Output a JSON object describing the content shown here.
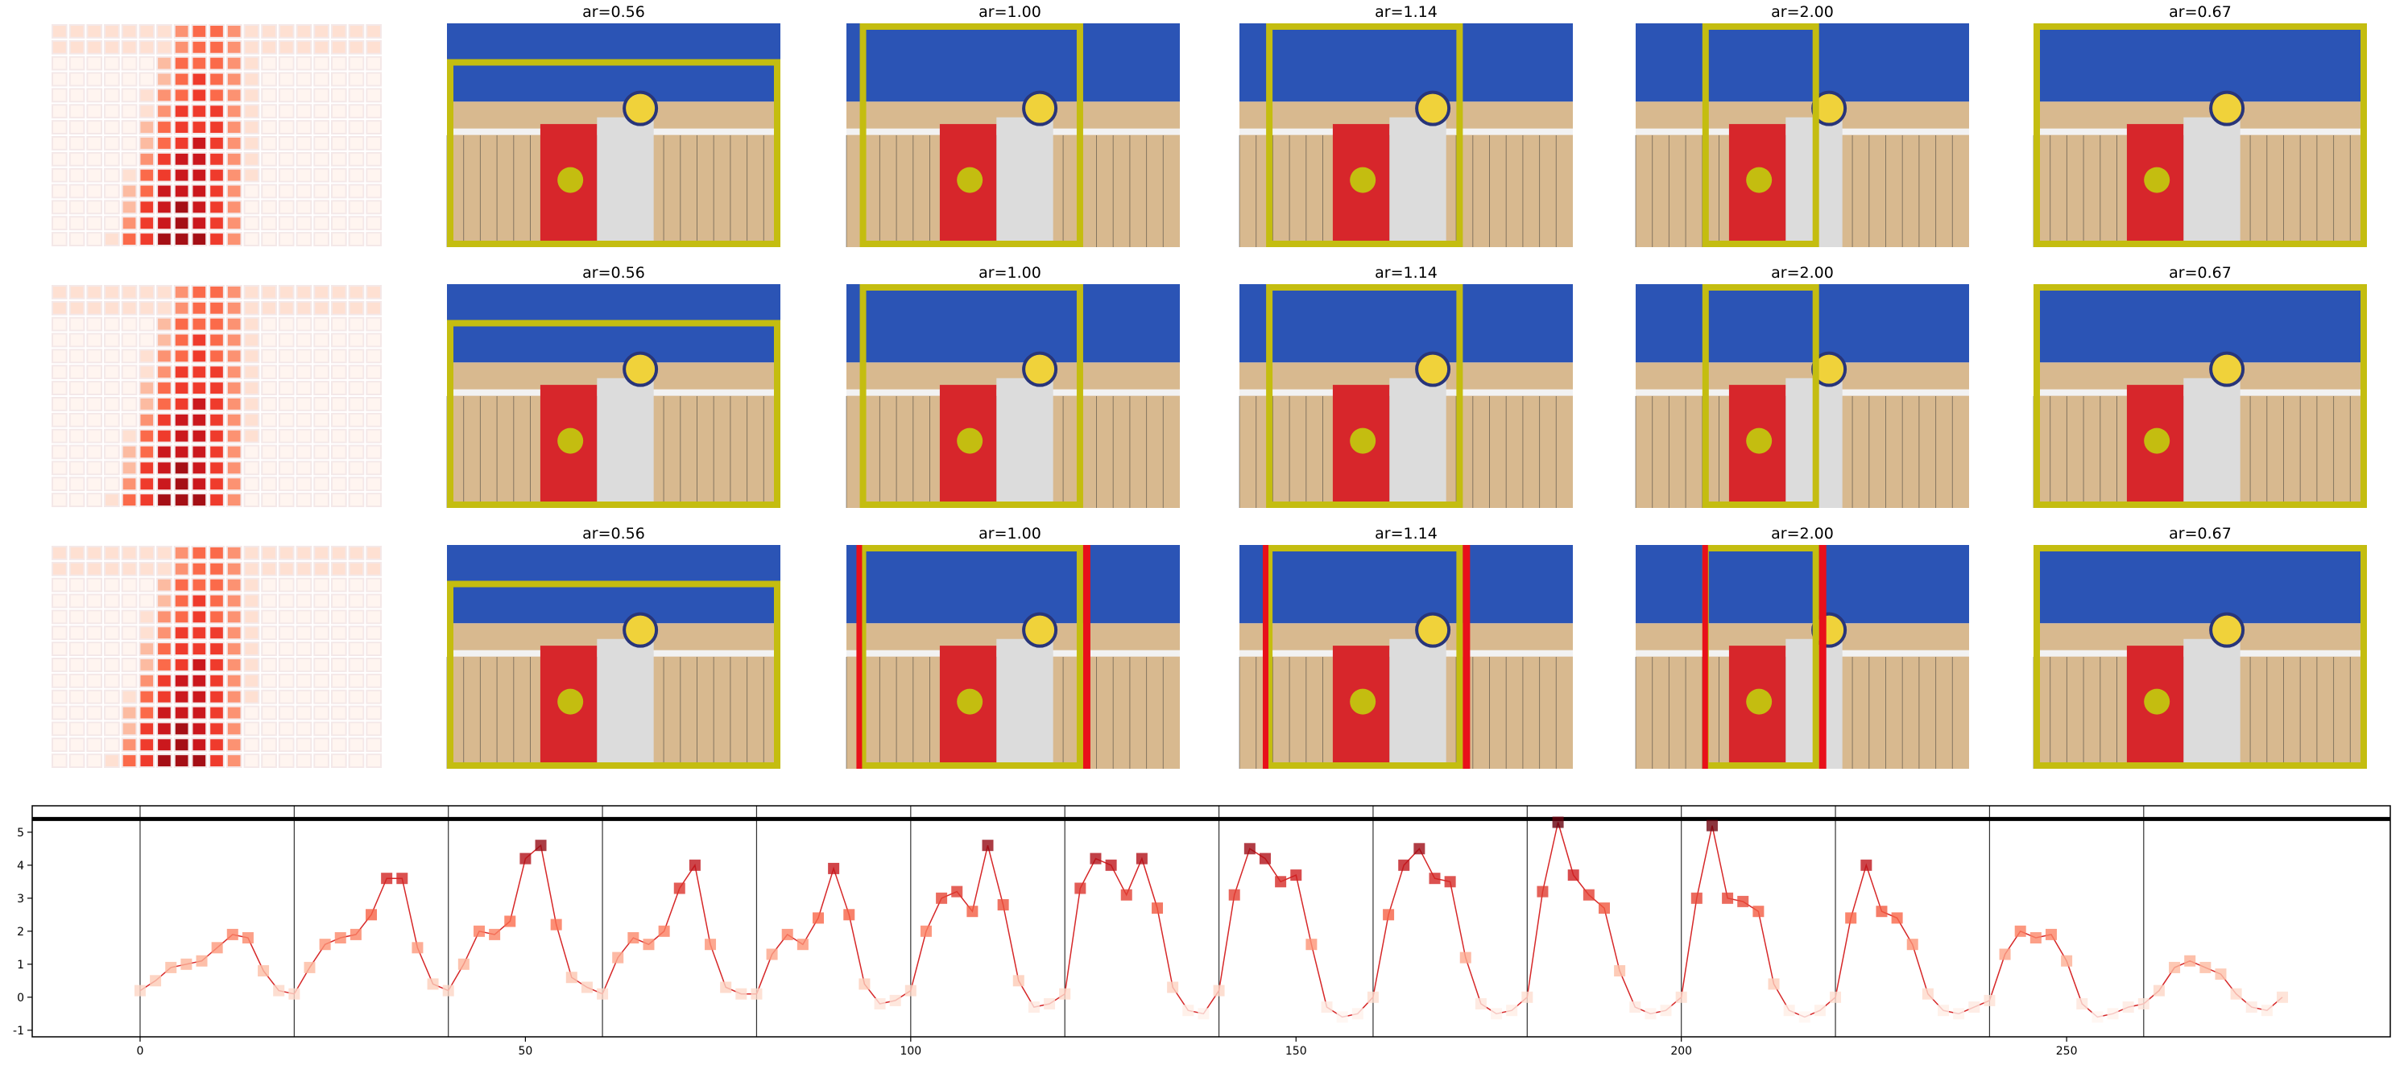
{
  "panel_titles": [
    [
      "ar=0.56",
      "ar=1.00",
      "ar=1.14",
      "ar=2.00",
      "ar=0.67"
    ],
    [
      "ar=0.56",
      "ar=1.00",
      "ar=1.14",
      "ar=2.00",
      "ar=0.67"
    ],
    [
      "ar=0.56",
      "ar=1.00",
      "ar=1.14",
      "ar=2.00",
      "ar=0.67"
    ]
  ],
  "chart_data": {
    "type": "line",
    "x": [
      0,
      2,
      4,
      6,
      8,
      10,
      12,
      14,
      16,
      18,
      20,
      22,
      24,
      26,
      28,
      30,
      32,
      34,
      36,
      38,
      40,
      42,
      44,
      46,
      48,
      50,
      52,
      54,
      56,
      58,
      60,
      62,
      64,
      66,
      68,
      70,
      72,
      74,
      76,
      78,
      80,
      82,
      84,
      86,
      88,
      90,
      92,
      94,
      96,
      98,
      100,
      102,
      104,
      106,
      108,
      110,
      112,
      114,
      116,
      118,
      120,
      122,
      124,
      126,
      128,
      130,
      132,
      134,
      136,
      138,
      140,
      142,
      144,
      146,
      148,
      150,
      152,
      154,
      156,
      158,
      160,
      162,
      164,
      166,
      168,
      170,
      172,
      174,
      176,
      178,
      180,
      182,
      184,
      186,
      188,
      190,
      192,
      194,
      196,
      198,
      200,
      202,
      204,
      206,
      208,
      210,
      212,
      214,
      216,
      218,
      220,
      222,
      224,
      226,
      228,
      230,
      232,
      234,
      236,
      238,
      240,
      242,
      244,
      246,
      248,
      250,
      252,
      254,
      256,
      258,
      260,
      262,
      264,
      266,
      268,
      270,
      272,
      274,
      276,
      278
    ],
    "values": [
      0.2,
      0.5,
      0.9,
      1.0,
      1.1,
      1.5,
      1.9,
      1.8,
      0.8,
      0.2,
      0.1,
      0.9,
      1.6,
      1.8,
      1.9,
      2.5,
      3.6,
      3.6,
      1.5,
      0.4,
      0.2,
      1.0,
      2.0,
      1.9,
      2.3,
      4.2,
      4.6,
      2.2,
      0.6,
      0.3,
      0.1,
      1.2,
      1.8,
      1.6,
      2.0,
      3.3,
      4.0,
      1.6,
      0.3,
      0.1,
      0.1,
      1.3,
      1.9,
      1.6,
      2.4,
      3.9,
      2.5,
      0.4,
      -0.2,
      -0.1,
      0.2,
      2.0,
      3.0,
      3.2,
      2.6,
      4.6,
      2.8,
      0.5,
      -0.3,
      -0.2,
      0.1,
      3.3,
      4.2,
      4.0,
      3.1,
      4.2,
      2.7,
      0.3,
      -0.4,
      -0.5,
      0.2,
      3.1,
      4.5,
      4.2,
      3.5,
      3.7,
      1.6,
      -0.3,
      -0.6,
      -0.5,
      0.0,
      2.5,
      4.0,
      4.5,
      3.6,
      3.5,
      1.2,
      -0.2,
      -0.5,
      -0.4,
      0.0,
      3.2,
      5.3,
      3.7,
      3.1,
      2.7,
      0.8,
      -0.3,
      -0.5,
      -0.4,
      0.0,
      3.0,
      5.2,
      3.0,
      2.9,
      2.6,
      0.4,
      -0.4,
      -0.6,
      -0.4,
      0.0,
      2.4,
      4.0,
      2.6,
      2.4,
      1.6,
      0.1,
      -0.4,
      -0.5,
      -0.3,
      -0.1,
      1.3,
      2.0,
      1.8,
      1.9,
      1.1,
      -0.2,
      -0.6,
      -0.5,
      -0.3,
      -0.2,
      0.2,
      0.9,
      1.1,
      0.9,
      0.7,
      0.1,
      -0.3,
      -0.4,
      0.0
    ],
    "color": "#d62728",
    "marker_colormap": [
      "#fff5f0",
      "#fcbba1",
      "#fb6a4a",
      "#cb181d",
      "#67000d"
    ],
    "xlim": [
      -14,
      292
    ],
    "ylim": [
      -1.2,
      5.8
    ],
    "xticks": [
      0,
      50,
      100,
      150,
      200,
      250
    ],
    "yticks": [
      -1,
      0,
      1,
      2,
      3,
      4,
      5
    ],
    "vlines": [
      0,
      20,
      40,
      60,
      80,
      100,
      120,
      140,
      160,
      180,
      200,
      220,
      240,
      260
    ],
    "hline": 5.4
  }
}
